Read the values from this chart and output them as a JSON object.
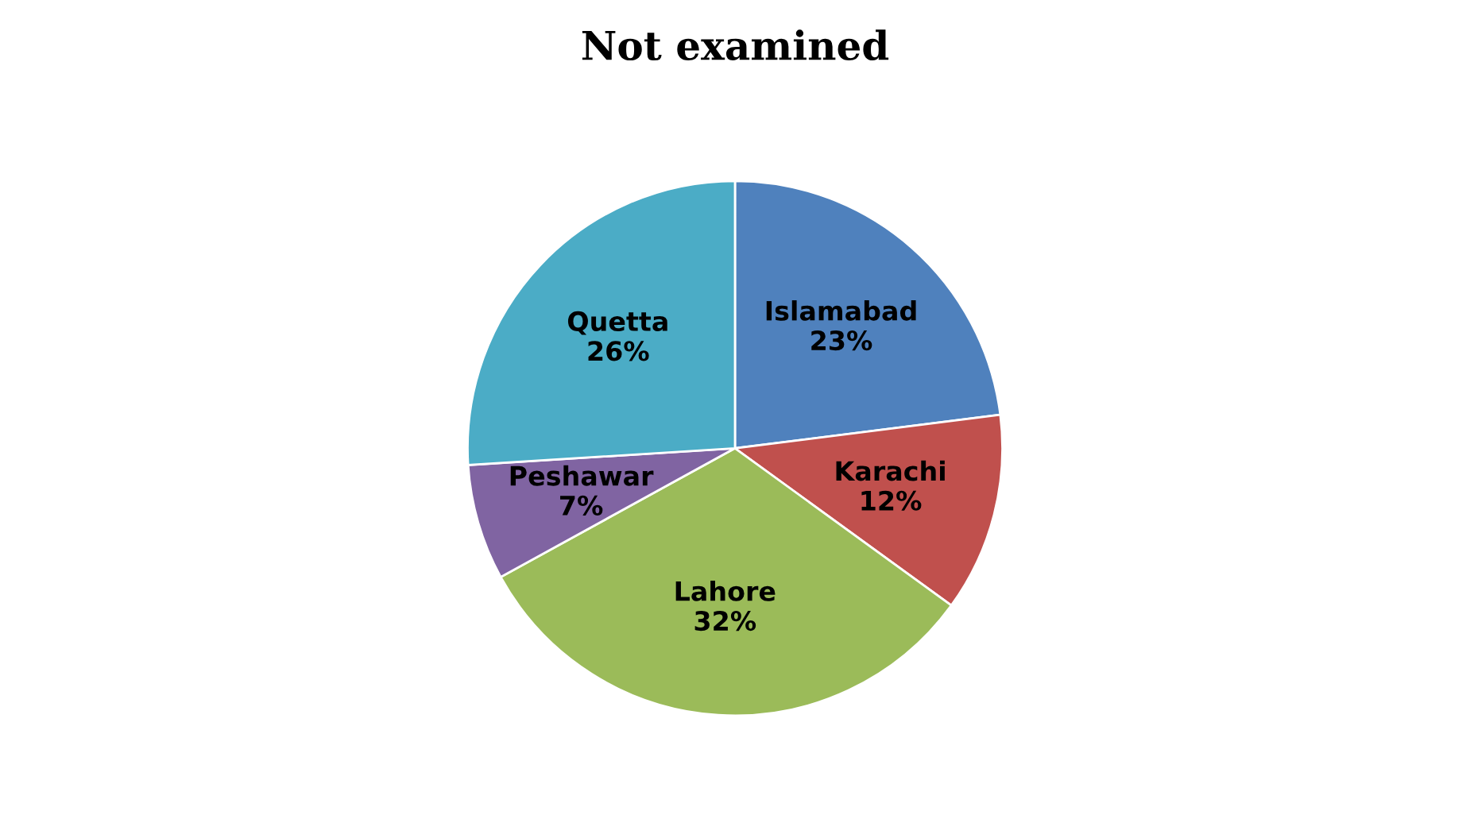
{
  "chart_data": {
    "type": "pie",
    "title": "Not examined",
    "categories": [
      "Islamabad",
      "Karachi",
      "Lahore",
      "Peshawar",
      "Quetta"
    ],
    "values": [
      23,
      12,
      32,
      7,
      26
    ],
    "colors": [
      "#4f81bd",
      "#c0504d",
      "#9bbb59",
      "#8064a2",
      "#4bacc6"
    ],
    "value_labels": [
      "23%",
      "12%",
      "32%",
      "7%",
      "26%"
    ],
    "legend": false
  }
}
